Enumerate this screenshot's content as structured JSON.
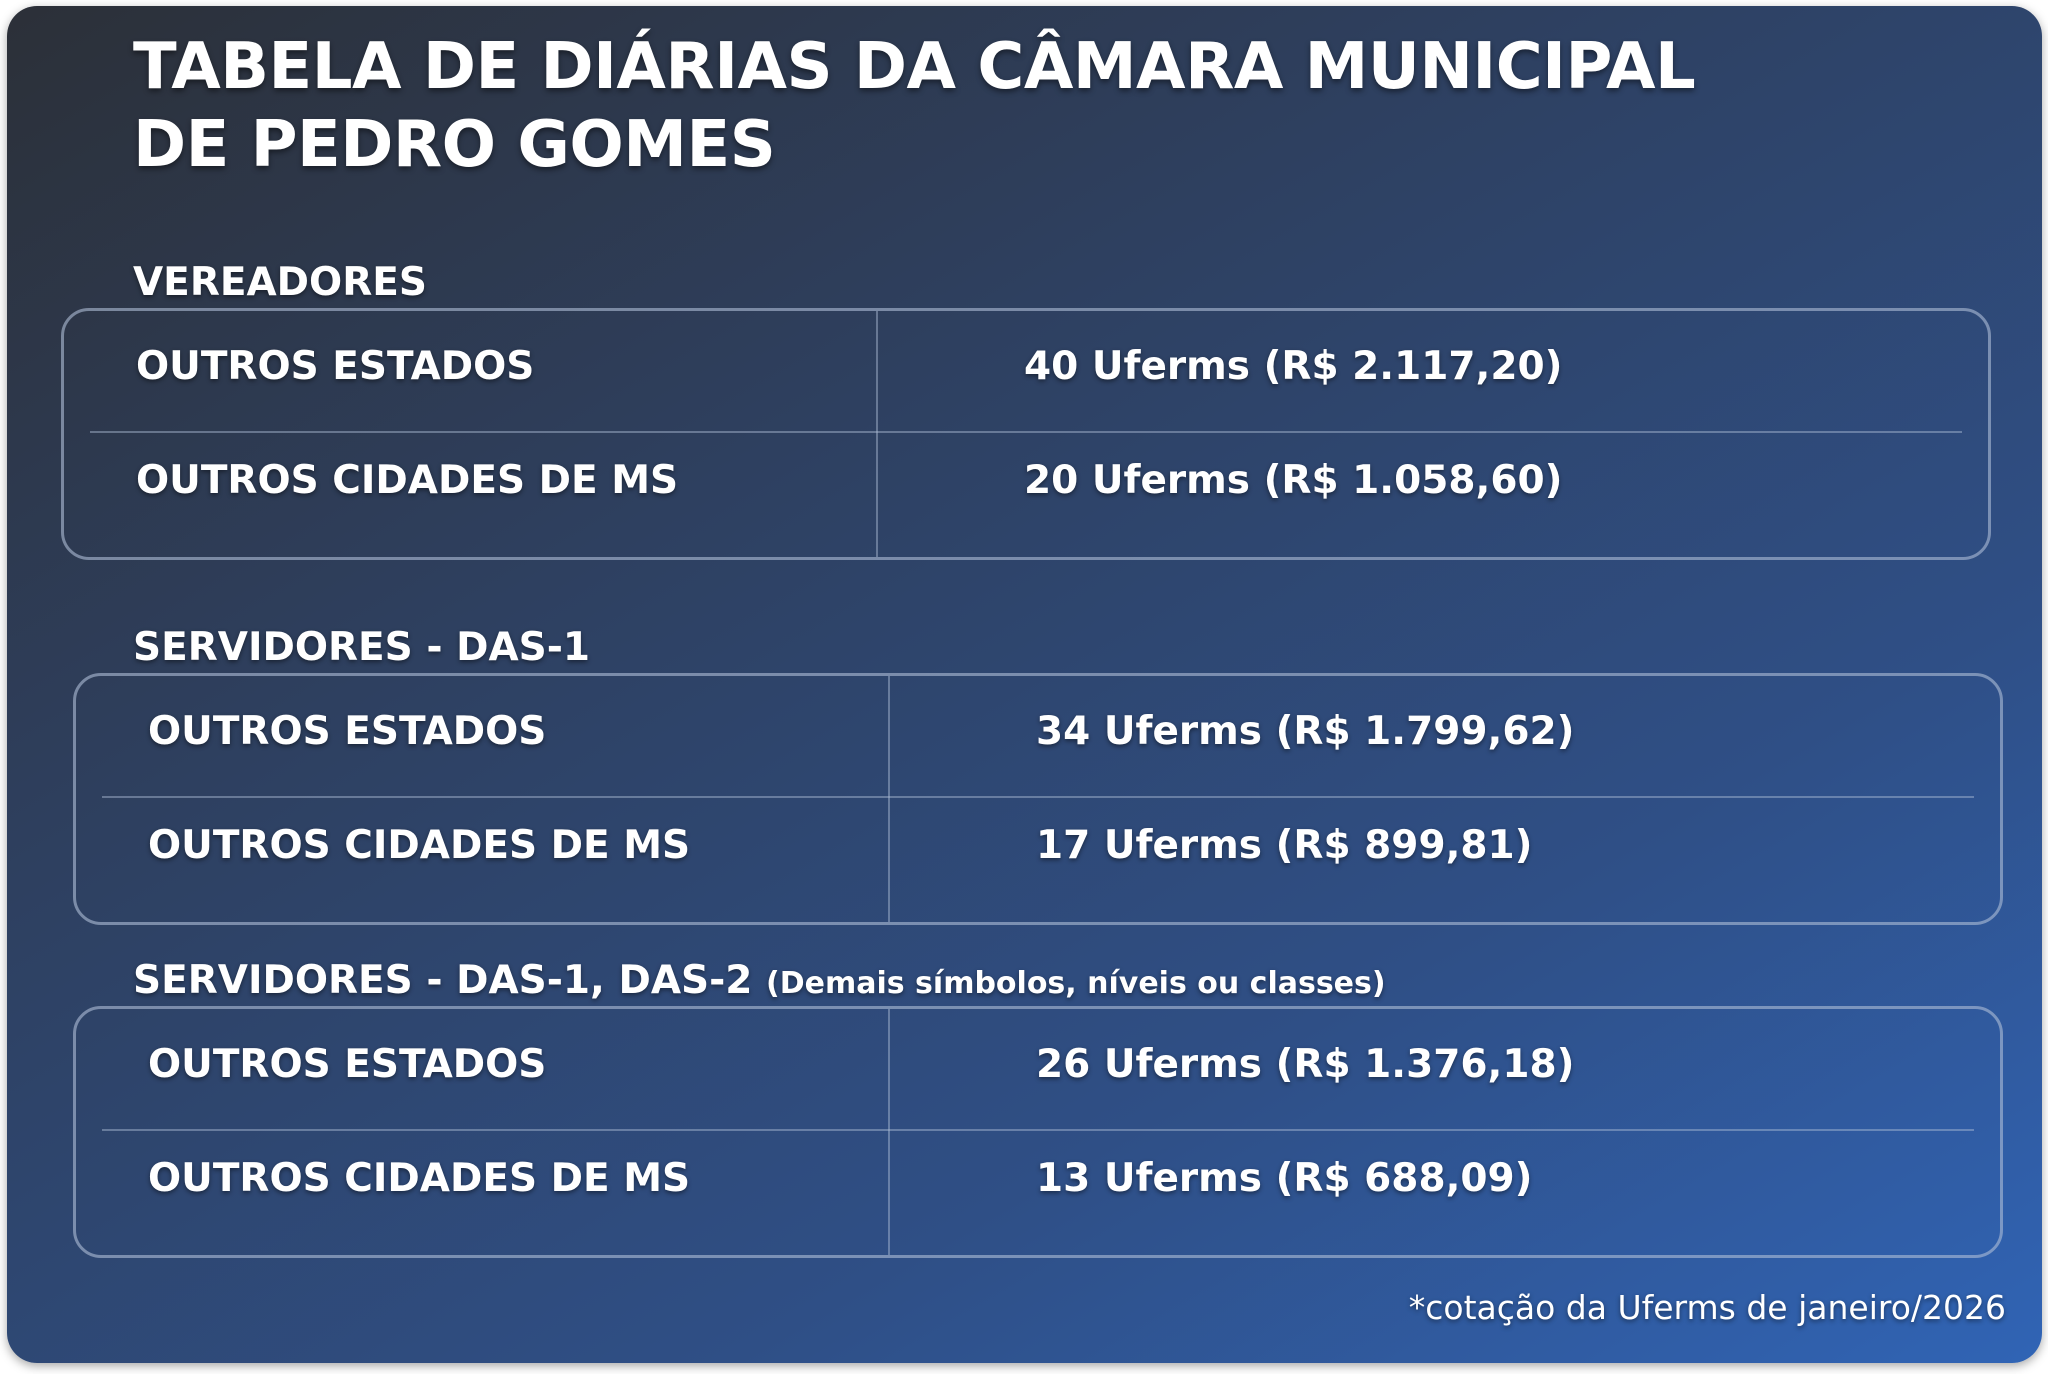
{
  "header": {
    "title_line1": "TABELA DE DIÁRIAS DA CÂMARA MUNICIPAL",
    "title_line2": "DE PEDRO GOMES"
  },
  "sections": [
    {
      "title": "VEREADORES",
      "note": "",
      "rows": [
        {
          "label": "OUTROS ESTADOS",
          "value": "40 Uferms (R$ 2.117,20)"
        },
        {
          "label": "OUTROS CIDADES DE MS",
          "value": "20 Uferms (R$ 1.058,60)"
        }
      ]
    },
    {
      "title": "SERVIDORES - DAS-1",
      "note": "",
      "rows": [
        {
          "label": "OUTROS ESTADOS",
          "value": "34 Uferms (R$ 1.799,62)"
        },
        {
          "label": "OUTROS CIDADES DE MS",
          "value": "17 Uferms (R$ 899,81)"
        }
      ]
    },
    {
      "title": "SERVIDORES - DAS-1, DAS-2",
      "note": "(Demais símbolos, níveis ou classes)",
      "rows": [
        {
          "label": "OUTROS ESTADOS",
          "value": "26 Uferms (R$ 1.376,18)"
        },
        {
          "label": "OUTROS CIDADES DE MS",
          "value": "13 Uferms (R$ 688,09)"
        }
      ]
    }
  ],
  "footnote": "*cotação da Uferms de janeiro/2026"
}
